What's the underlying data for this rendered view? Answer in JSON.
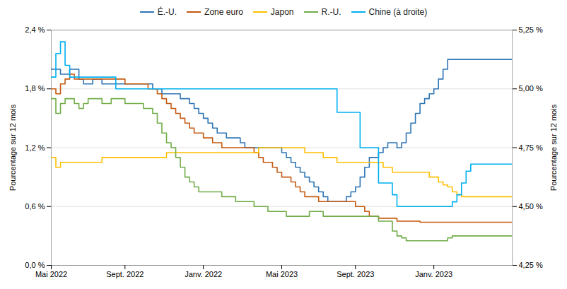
{
  "chart_data": {
    "type": "line",
    "line_style": "step",
    "ylabel": "Pourcentage sur 12 mois",
    "y2label": "Pourcentage sur 12 mois",
    "grid": true,
    "legend": "top",
    "ylim": [
      0.0,
      2.4
    ],
    "yticks": [
      {
        "value": 0.0,
        "label": "0,0 %"
      },
      {
        "value": 0.6,
        "label": "0,6 %"
      },
      {
        "value": 1.2,
        "label": "1,2 %"
      },
      {
        "value": 1.8,
        "label": "1,8 %"
      },
      {
        "value": 2.4,
        "label": "2,4 %"
      }
    ],
    "y2lim": [
      4.25,
      5.25
    ],
    "y2ticks": [
      {
        "value": 4.25,
        "label": "4,25 %"
      },
      {
        "value": 4.5,
        "label": "4,50 %"
      },
      {
        "value": 4.75,
        "label": "4,75 %"
      },
      {
        "value": 5.0,
        "label": "5,00 %"
      },
      {
        "value": 5.25,
        "label": "5,25 %"
      }
    ],
    "categories": [
      "Mai 2022",
      null,
      null,
      null,
      null,
      null,
      null,
      null,
      null,
      null,
      null,
      null,
      null,
      null,
      null,
      null,
      "Sept. 2022",
      null,
      null,
      null,
      null,
      null,
      null,
      null,
      null,
      null,
      null,
      null,
      null,
      null,
      null,
      null,
      null,
      "Janv. 2022",
      null,
      null,
      null,
      null,
      null,
      null,
      null,
      null,
      null,
      null,
      null,
      null,
      null,
      null,
      null,
      null,
      "Mai 2023",
      null,
      null,
      null,
      null,
      null,
      null,
      null,
      null,
      null,
      null,
      null,
      null,
      null,
      null,
      null,
      "Sept. 2023",
      null,
      null,
      null,
      null,
      null,
      null,
      null,
      null,
      null,
      null,
      null,
      null,
      null,
      null,
      null,
      null,
      "Janv. 2023",
      null,
      null,
      null,
      null,
      null,
      null,
      null,
      null,
      null,
      null,
      null,
      null,
      null,
      null,
      null,
      null,
      null
    ],
    "series": [
      {
        "name": "É.-U.",
        "color": "#2E75B6",
        "values": [
          2.0,
          2.0,
          1.95,
          1.95,
          2.0,
          2.0,
          1.9,
          1.85,
          1.85,
          1.9,
          1.9,
          1.85,
          1.85,
          1.85,
          1.85,
          1.85,
          1.85,
          1.85,
          1.85,
          1.85,
          1.85,
          1.85,
          1.8,
          1.8,
          1.75,
          1.75,
          1.75,
          1.75,
          1.7,
          1.7,
          1.65,
          1.6,
          1.55,
          1.5,
          1.45,
          1.4,
          1.35,
          1.35,
          1.3,
          1.3,
          1.3,
          1.25,
          1.2,
          1.2,
          1.2,
          1.2,
          1.2,
          1.2,
          1.2,
          1.2,
          1.15,
          1.1,
          1.05,
          1.0,
          0.95,
          0.9,
          0.85,
          0.8,
          0.75,
          0.7,
          0.65,
          0.65,
          0.65,
          0.65,
          0.7,
          0.75,
          0.8,
          0.9,
          1.0,
          1.1,
          1.1,
          1.15,
          1.2,
          1.25,
          1.25,
          1.2,
          1.25,
          1.35,
          1.45,
          1.55,
          1.65,
          1.7,
          1.75,
          1.8,
          1.9,
          2.0,
          2.1,
          2.1,
          2.1,
          2.1,
          2.1,
          2.1,
          2.1,
          2.1,
          2.1,
          2.1,
          2.1,
          2.1,
          2.1,
          2.1,
          2.1
        ]
      },
      {
        "name": "Zone euro",
        "color": "#C55A11",
        "values": [
          1.8,
          1.75,
          1.85,
          1.9,
          1.95,
          1.9,
          1.9,
          1.9,
          1.9,
          1.9,
          1.9,
          1.9,
          1.9,
          1.9,
          1.9,
          1.9,
          1.85,
          1.85,
          1.85,
          1.85,
          1.85,
          1.8,
          1.8,
          1.75,
          1.7,
          1.65,
          1.6,
          1.55,
          1.5,
          1.45,
          1.4,
          1.35,
          1.35,
          1.3,
          1.3,
          1.25,
          1.25,
          1.2,
          1.2,
          1.2,
          1.2,
          1.2,
          1.2,
          1.2,
          1.15,
          1.1,
          1.05,
          1.05,
          1.0,
          0.95,
          0.9,
          0.9,
          0.85,
          0.8,
          0.75,
          0.7,
          0.7,
          0.7,
          0.65,
          0.65,
          0.65,
          0.65,
          0.65,
          0.65,
          0.65,
          0.65,
          0.6,
          0.6,
          0.55,
          0.5,
          0.5,
          0.48,
          0.48,
          0.48,
          0.48,
          0.45,
          0.45,
          0.45,
          0.45,
          0.45,
          0.44,
          0.44,
          0.44,
          0.44,
          0.44,
          0.44,
          0.44,
          0.44,
          0.44,
          0.44,
          0.44,
          0.44,
          0.44,
          0.44,
          0.44,
          0.44,
          0.44,
          0.44,
          0.44,
          0.44,
          0.44
        ]
      },
      {
        "name": "Japon",
        "color": "#FFC000",
        "values": [
          1.1,
          1.0,
          1.05,
          1.05,
          1.05,
          1.05,
          1.05,
          1.05,
          1.05,
          1.05,
          1.05,
          1.1,
          1.1,
          1.1,
          1.1,
          1.1,
          1.1,
          1.1,
          1.1,
          1.1,
          1.1,
          1.1,
          1.1,
          1.1,
          1.1,
          1.15,
          1.15,
          1.15,
          1.15,
          1.15,
          1.15,
          1.15,
          1.15,
          1.15,
          1.15,
          1.15,
          1.15,
          1.15,
          1.15,
          1.15,
          1.15,
          1.15,
          1.15,
          1.15,
          1.15,
          1.2,
          1.2,
          1.2,
          1.2,
          1.2,
          1.2,
          1.2,
          1.2,
          1.2,
          1.2,
          1.15,
          1.15,
          1.15,
          1.15,
          1.1,
          1.1,
          1.1,
          1.05,
          1.05,
          1.05,
          1.05,
          1.05,
          1.05,
          1.05,
          1.05,
          1.05,
          1.05,
          1.0,
          1.0,
          0.95,
          0.95,
          0.95,
          0.95,
          0.95,
          0.95,
          0.95,
          0.95,
          0.9,
          0.9,
          0.85,
          0.82,
          0.8,
          0.75,
          0.72,
          0.7,
          0.7,
          0.7,
          0.7,
          0.7,
          0.7,
          0.7,
          0.7,
          0.7,
          0.7,
          0.7,
          0.7
        ]
      },
      {
        "name": "R.-U.",
        "color": "#70AD47",
        "values": [
          1.7,
          1.55,
          1.65,
          1.7,
          1.7,
          1.65,
          1.6,
          1.65,
          1.7,
          1.7,
          1.7,
          1.65,
          1.65,
          1.7,
          1.7,
          1.7,
          1.65,
          1.65,
          1.65,
          1.65,
          1.6,
          1.6,
          1.55,
          1.45,
          1.35,
          1.25,
          1.2,
          1.1,
          1.0,
          0.9,
          0.85,
          0.8,
          0.75,
          0.75,
          0.75,
          0.75,
          0.75,
          0.7,
          0.7,
          0.7,
          0.65,
          0.65,
          0.65,
          0.65,
          0.6,
          0.6,
          0.6,
          0.55,
          0.55,
          0.55,
          0.55,
          0.5,
          0.5,
          0.5,
          0.5,
          0.5,
          0.55,
          0.55,
          0.55,
          0.5,
          0.5,
          0.5,
          0.5,
          0.5,
          0.5,
          0.5,
          0.5,
          0.5,
          0.5,
          0.5,
          0.5,
          0.45,
          0.45,
          0.45,
          0.35,
          0.3,
          0.28,
          0.25,
          0.25,
          0.25,
          0.25,
          0.25,
          0.25,
          0.25,
          0.25,
          0.25,
          0.28,
          0.3,
          0.3,
          0.3,
          0.3,
          0.3,
          0.3,
          0.3,
          0.3,
          0.3,
          0.3,
          0.3,
          0.3,
          0.3,
          0.3
        ]
      },
      {
        "name": "Chine (à droite)",
        "color": "#00B0F0",
        "axis": "y2",
        "values": [
          5.05,
          5.15,
          5.2,
          5.1,
          5.05,
          5.05,
          5.05,
          5.05,
          5.05,
          5.05,
          5.05,
          5.05,
          5.05,
          5.05,
          5.0,
          5.0,
          5.0,
          5.0,
          5.0,
          5.0,
          5.0,
          5.0,
          5.0,
          5.0,
          5.0,
          5.0,
          5.0,
          5.0,
          5.0,
          5.0,
          5.0,
          5.0,
          5.0,
          5.0,
          5.0,
          5.0,
          5.0,
          5.0,
          5.0,
          5.0,
          5.0,
          5.0,
          5.0,
          5.0,
          5.0,
          5.0,
          5.0,
          5.0,
          5.0,
          5.0,
          5.0,
          5.0,
          5.0,
          5.0,
          5.0,
          5.0,
          5.0,
          5.0,
          5.0,
          5.0,
          5.0,
          5.0,
          4.9,
          4.9,
          4.9,
          4.9,
          4.9,
          4.75,
          4.75,
          4.75,
          4.75,
          4.6,
          4.6,
          4.6,
          4.55,
          4.5,
          4.5,
          4.5,
          4.5,
          4.5,
          4.5,
          4.5,
          4.5,
          4.5,
          4.5,
          4.5,
          4.5,
          4.52,
          4.55,
          4.6,
          4.65,
          4.68,
          4.68,
          4.68,
          4.68,
          4.68,
          4.68,
          4.68,
          4.68,
          4.68,
          4.68
        ]
      }
    ]
  }
}
